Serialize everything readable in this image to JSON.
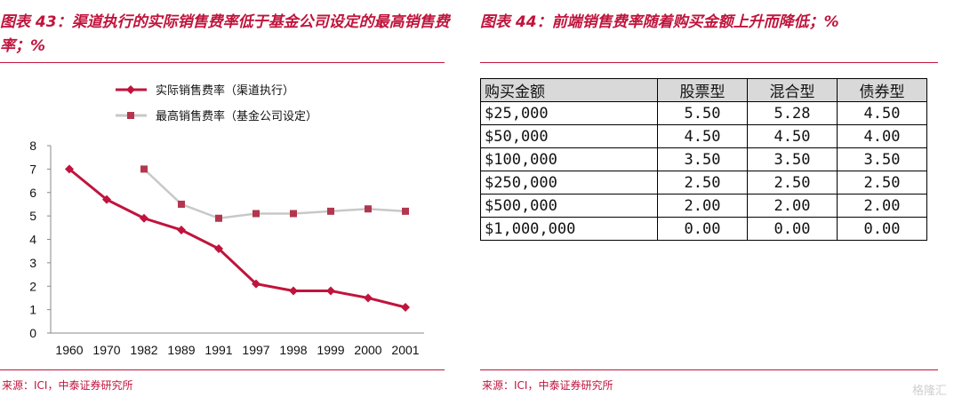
{
  "left": {
    "title": "图表 43：渠道执行的实际销售费率低于基金公司设定的最高销售费率；%",
    "source": "来源：ICI，中泰证券研究所"
  },
  "right": {
    "title": "图表 44：前端销售费率随着购买金额上升而降低；%",
    "source": "来源：ICI，中泰证券研究所",
    "table": {
      "headers": [
        "购买金额",
        "股票型",
        "混合型",
        "债券型"
      ],
      "rows": [
        [
          "$25,000",
          "5.50",
          "5.28",
          "4.50"
        ],
        [
          "$50,000",
          "4.50",
          "4.50",
          "4.00"
        ],
        [
          "$100,000",
          "3.50",
          "3.50",
          "3.50"
        ],
        [
          "$250,000",
          "2.50",
          "2.50",
          "2.50"
        ],
        [
          "$500,000",
          "2.00",
          "2.00",
          "2.00"
        ],
        [
          "$1,000,000",
          "0.00",
          "0.00",
          "0.00"
        ]
      ]
    }
  },
  "watermark": "格隆汇",
  "chart_data": {
    "type": "line",
    "categories": [
      "1960",
      "1970",
      "1982",
      "1989",
      "1991",
      "1997",
      "1998",
      "1999",
      "2000",
      "2001"
    ],
    "series": [
      {
        "name": "实际销售费率（渠道执行）",
        "color": "#c0143c",
        "marker": "diamond",
        "values": [
          7.0,
          5.7,
          4.9,
          4.4,
          3.6,
          2.1,
          1.8,
          1.8,
          1.5,
          1.1
        ]
      },
      {
        "name": "最高销售费率（基金公司设定）",
        "color": "#c8c8c8",
        "marker": "square",
        "values": [
          null,
          null,
          7.0,
          5.5,
          4.9,
          5.1,
          5.1,
          5.2,
          5.3,
          5.2
        ]
      }
    ],
    "yticks": [
      "0",
      "1",
      "2",
      "3",
      "4",
      "5",
      "6",
      "7",
      "8"
    ],
    "ylim": [
      0,
      8
    ],
    "grid": false,
    "legend_position": "top-left"
  }
}
